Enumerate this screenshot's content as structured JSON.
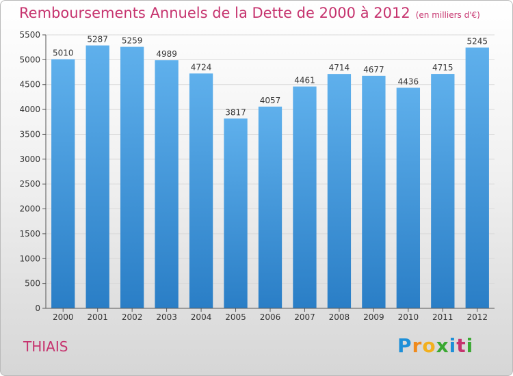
{
  "header": {
    "title": "Remboursements Annuels de la Dette de 2000 à 2012",
    "subtitle": "(en milliers d'€)"
  },
  "footer": {
    "city": "THIAIS",
    "logo": {
      "letters": [
        "P",
        "r",
        "o",
        "x",
        "i",
        "t",
        "i"
      ],
      "colors": [
        "#1d8fd8",
        "#f08a1c",
        "#f2b01e",
        "#3aa832",
        "#1d8fd8",
        "#c6336e",
        "#3aa832"
      ]
    }
  },
  "colors": {
    "bar_top": "#5fb0ec",
    "bar_bottom": "#2a7ec6",
    "title": "#c6336e",
    "grid": "#d9d9d9"
  },
  "chart_data": {
    "type": "bar",
    "title": "Remboursements Annuels de la Dette de 2000 à 2012",
    "xlabel": "",
    "ylabel": "",
    "categories": [
      "2000",
      "2001",
      "2002",
      "2003",
      "2004",
      "2005",
      "2006",
      "2007",
      "2008",
      "2009",
      "2010",
      "2011",
      "2012"
    ],
    "values": [
      5010,
      5287,
      5259,
      4989,
      4724,
      3817,
      4057,
      4461,
      4714,
      4677,
      4436,
      4715,
      5245
    ],
    "ylim": [
      0,
      5500
    ],
    "yticks": [
      0,
      500,
      1000,
      1500,
      2000,
      2500,
      3000,
      3500,
      4000,
      4500,
      5000,
      5500
    ],
    "grid": true,
    "legend": "none"
  }
}
